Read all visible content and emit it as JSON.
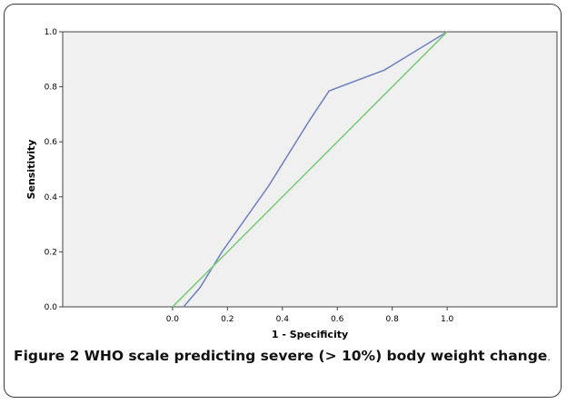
{
  "chart_data": {
    "type": "line",
    "xlabel": "1 - Specificity",
    "ylabel": "Sensitivity",
    "xlim": [
      -0.4,
      1.4
    ],
    "ylim": [
      0,
      1
    ],
    "x_ticks": [
      "0.0",
      "0.2",
      "0.4",
      "0.6",
      "0.8",
      "1.0"
    ],
    "y_ticks": [
      "0.0",
      "0.2",
      "0.4",
      "0.6",
      "0.8",
      "1.0"
    ],
    "grid": false,
    "plot_background": "#f0f0f0",
    "series": [
      {
        "color": "#7585c2",
        "x": [
          0.04,
          0.1,
          0.18,
          0.35,
          0.5,
          0.57,
          0.77,
          1.0
        ],
        "y": [
          0.0,
          0.07,
          0.2,
          0.44,
          0.68,
          0.785,
          0.86,
          1.0
        ]
      },
      {
        "color": "#7dcd7d",
        "x": [
          0.0,
          1.0
        ],
        "y": [
          0.0,
          1.0
        ]
      }
    ]
  },
  "caption": {
    "label": "Figure 2",
    "text": " WHO scale predicting severe (> 10%) body weight change",
    "end": "."
  }
}
